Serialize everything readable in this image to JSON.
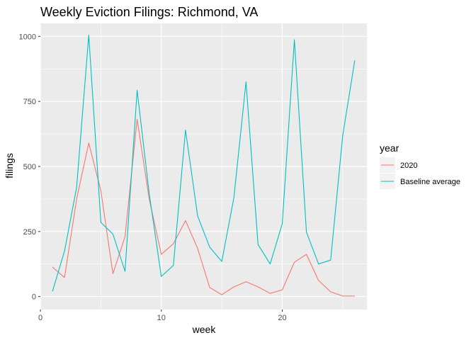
{
  "chart_data": {
    "type": "line",
    "title": "Weekly Eviction Filings: Richmond, VA",
    "xlabel": "week",
    "ylabel": "filings",
    "xlim": [
      0,
      27
    ],
    "ylim": [
      -50,
      1050
    ],
    "x_ticks": [
      0,
      10,
      20
    ],
    "x_tick_labels": [
      "0",
      "10",
      "20"
    ],
    "y_ticks": [
      0,
      250,
      500,
      750,
      1000
    ],
    "y_tick_labels": [
      "0",
      "250",
      "500",
      "750",
      "1000"
    ],
    "grid": true,
    "legend": {
      "title": "year",
      "position": "right"
    },
    "x": [
      1,
      2,
      3,
      4,
      5,
      6,
      7,
      8,
      9,
      10,
      11,
      12,
      13,
      14,
      15,
      16,
      17,
      18,
      19,
      20,
      21,
      22,
      23,
      24,
      25,
      26
    ],
    "series": [
      {
        "name": "2020",
        "color": "#F8766D",
        "values": [
          113,
          73,
          375,
          590,
          407,
          88,
          230,
          682,
          374,
          162,
          203,
          292,
          185,
          35,
          7,
          37,
          57,
          37,
          12,
          26,
          132,
          162,
          62,
          18,
          2,
          2
        ]
      },
      {
        "name": "Baseline average",
        "color": "#00BFC4",
        "values": [
          20,
          175,
          420,
          1005,
          285,
          240,
          97,
          793,
          395,
          77,
          120,
          640,
          310,
          190,
          135,
          380,
          825,
          200,
          125,
          280,
          987,
          248,
          125,
          140,
          620,
          908
        ]
      }
    ]
  }
}
